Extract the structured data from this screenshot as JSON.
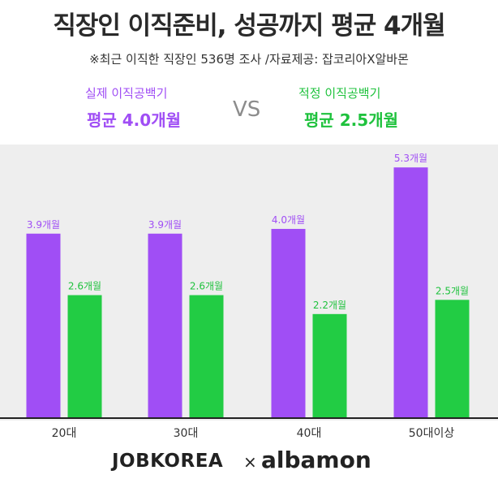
{
  "title": "직장인 이직준비, 성공까지 평균 4개월",
  "subtitle": "※최근 이직한 직장인 536명 조사 /자료제공: 잡코리아X알바몬",
  "comparison": {
    "left_label": "실제 이직공백기",
    "left_value": "평균 4.0개월",
    "vs": "VS",
    "right_label": "적정 이직공백기",
    "right_value": "평균 2.5개월"
  },
  "colors": {
    "actual": "#a04ef5",
    "proper": "#22cc44",
    "actual_label": "#a04ef5",
    "proper_label": "#1fc23d"
  },
  "logos": {
    "left": "JOBKOREA",
    "times": "×",
    "right": "albamon"
  },
  "chart_data": {
    "type": "bar",
    "categories": [
      "20대",
      "30대",
      "40대",
      "50대이상"
    ],
    "series": [
      {
        "name": "실제 이직공백기",
        "values": [
          3.9,
          3.9,
          4.0,
          5.3
        ],
        "labels": [
          "3.9개월",
          "3.9개월",
          "4.0개월",
          "5.3개월"
        ]
      },
      {
        "name": "적정 이직공백기",
        "values": [
          2.6,
          2.6,
          2.2,
          2.5
        ],
        "labels": [
          "2.6개월",
          "2.6개월",
          "2.2개월",
          "2.5개월"
        ]
      }
    ],
    "ylim": [
      0,
      5.75
    ],
    "grid": false
  }
}
